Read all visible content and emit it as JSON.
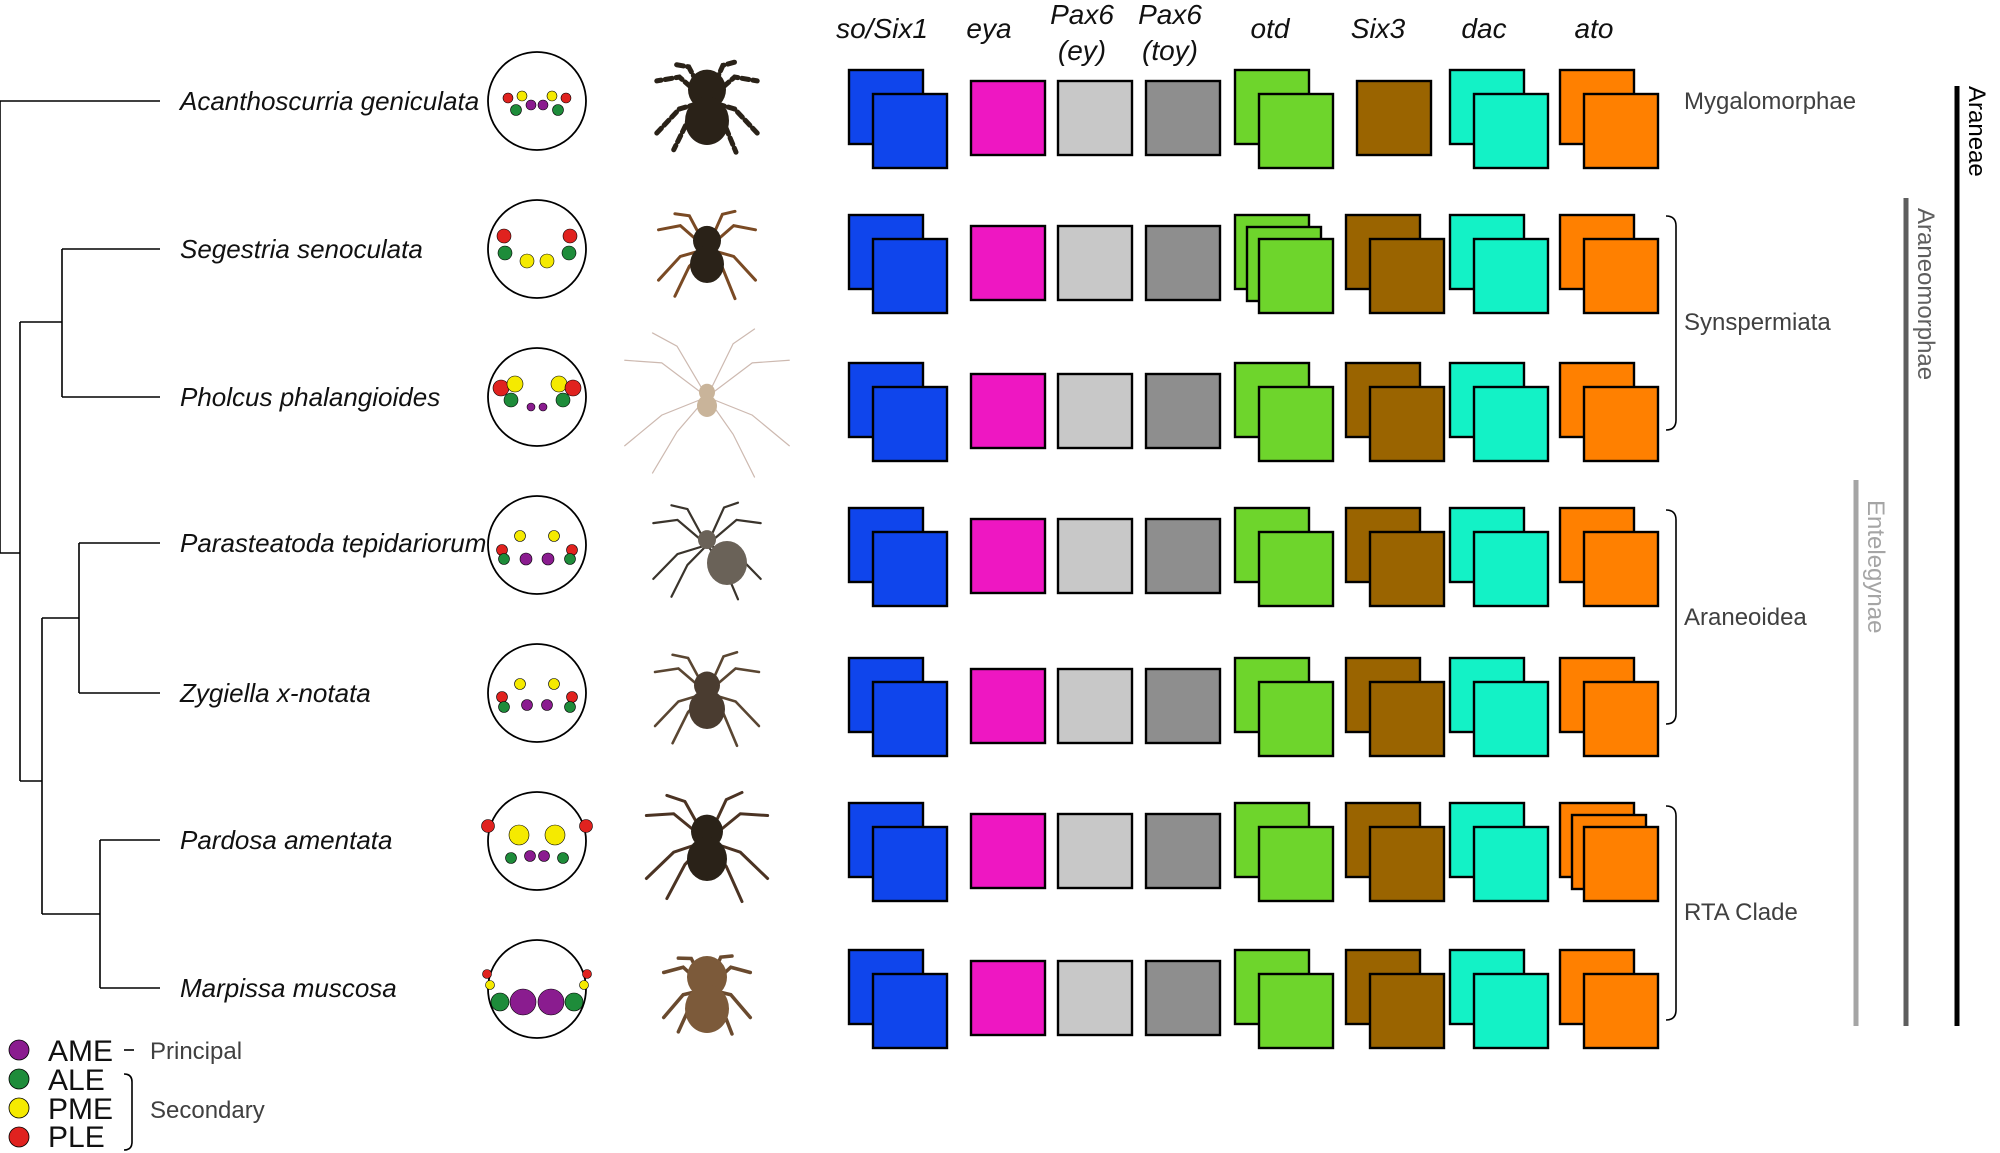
{
  "colors": {
    "line": "#000000",
    "purple": "#8a1c8f",
    "green": "#1e8c3a",
    "yellow": "#f5ea00",
    "red": "#e0221f",
    "spider_dark": "#2a2218",
    "spider_brown": "#7a4a24",
    "spider_pale": "#c9b49a"
  },
  "genes": [
    {
      "label": "so/Six1",
      "color": "#0f45ec"
    },
    {
      "label": "eya",
      "color": "#ee17c2"
    },
    {
      "label": "Pax6",
      "label2": "(ey)",
      "color": "#c8c8c8"
    },
    {
      "label": "Pax6",
      "label2": "(toy)",
      "color": "#8e8e8e"
    },
    {
      "label": "otd",
      "color": "#6ed52c"
    },
    {
      "label": "Six3",
      "color": "#9a6400"
    },
    {
      "label": "dac",
      "color": "#13f2c6"
    },
    {
      "label": "ato",
      "color": "#ff8000"
    }
  ],
  "species": [
    {
      "name": "Acanthoscurria geniculata",
      "copies": [
        2,
        1,
        1,
        1,
        2,
        1,
        2,
        2
      ]
    },
    {
      "name": "Segestria senoculata",
      "copies": [
        2,
        1,
        1,
        1,
        3,
        2,
        2,
        2
      ]
    },
    {
      "name": "Pholcus phalangioides",
      "copies": [
        2,
        1,
        1,
        1,
        2,
        2,
        2,
        2
      ]
    },
    {
      "name": "Parasteatoda tepidariorum",
      "copies": [
        2,
        1,
        1,
        1,
        2,
        2,
        2,
        2
      ]
    },
    {
      "name": "Zygiella x-notata",
      "copies": [
        2,
        1,
        1,
        1,
        2,
        2,
        2,
        2
      ]
    },
    {
      "name": "Pardosa amentata",
      "copies": [
        2,
        1,
        1,
        1,
        2,
        2,
        2,
        3
      ]
    },
    {
      "name": "Marpissa muscosa",
      "copies": [
        2,
        1,
        1,
        1,
        2,
        2,
        2,
        2
      ]
    }
  ],
  "clades": {
    "mygalomorphae": "Mygalomorphae",
    "synspermiata": "Synspermiata",
    "araneoidea": "Araneoidea",
    "rta": "RTA Clade",
    "araneae": "Araneae",
    "araneomorphae": "Araneomorphae",
    "entelegynae": "Entelegynae"
  },
  "legend": {
    "ame": "AME",
    "ale": "ALE",
    "pme": "PME",
    "ple": "PLE",
    "principal": "Principal",
    "secondary": "Secondary"
  }
}
